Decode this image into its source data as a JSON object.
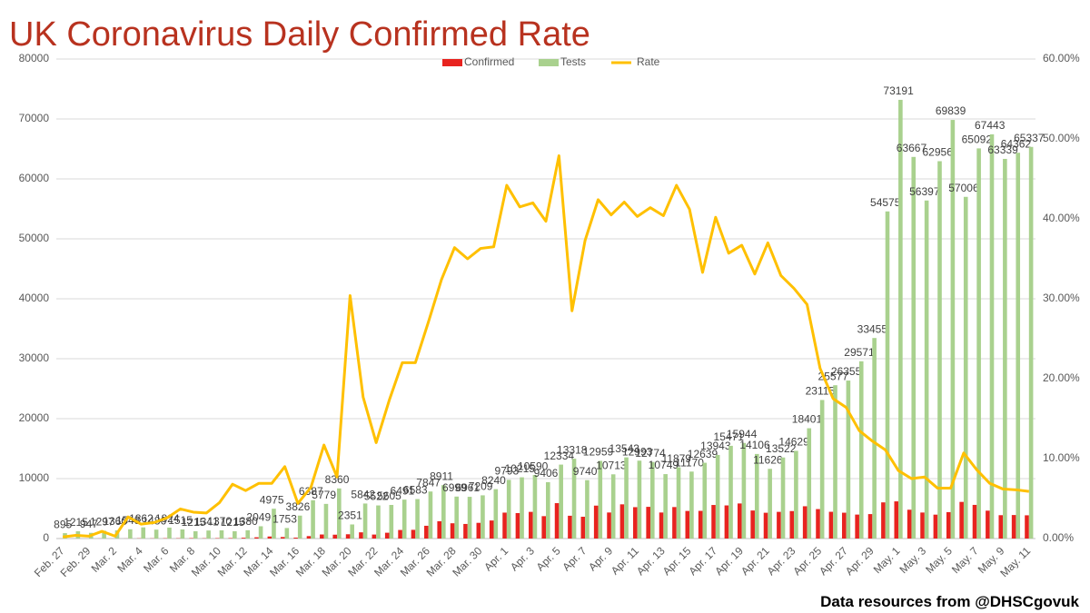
{
  "chart_data": {
    "type": "bar",
    "title": "UK Coronavirus Daily Confirmed Rate",
    "footnote": "Data resources from @DHSCgovuk",
    "categories": [
      "Feb. 27",
      null,
      "Feb. 29",
      null,
      "Mar. 2",
      null,
      "Mar. 4",
      null,
      "Mar. 6",
      null,
      "Mar. 8",
      null,
      "Mar. 10",
      null,
      "Mar. 12",
      null,
      "Mar. 14",
      null,
      "Mar. 16",
      null,
      "Mar. 18",
      null,
      "Mar. 20",
      null,
      "Mar. 22",
      null,
      "Mar. 24",
      null,
      "Mar. 26",
      null,
      "Mar. 28",
      null,
      "Mar. 30",
      null,
      "Apr. 1",
      null,
      "Apr. 3",
      null,
      "Apr. 5",
      null,
      "Apr. 7",
      null,
      "Apr. 9",
      null,
      "Apr. 11",
      null,
      "Apr. 13",
      null,
      "Apr. 15",
      null,
      "Apr. 17",
      null,
      "Apr. 19",
      null,
      "Apr. 21",
      null,
      "Apr. 23",
      null,
      "Apr. 25",
      null,
      "Apr. 27",
      null,
      "Apr. 29",
      null,
      "May. 1",
      null,
      "May. 3",
      null,
      "May. 5",
      null,
      "May. 7",
      null,
      "May. 9",
      null,
      "May. 11"
    ],
    "series": [
      {
        "name": "Confirmed",
        "color": "#e8231f",
        "values": [
          2,
          5,
          3,
          12,
          4,
          11,
          34,
          29,
          48,
          45,
          69,
          43,
          62,
          77,
          130,
          208,
          342,
          251,
          152,
          407,
          676,
          643,
          714,
          1035,
          665,
          967,
          1427,
          1452,
          2129,
          2885,
          2546,
          2433,
          2619,
          3009,
          4324,
          4244,
          4450,
          3735,
          5903,
          3802,
          3634,
          5491,
          4344,
          5706,
          5234,
          5288,
          4342,
          5252,
          4603,
          4617,
          5599,
          5525,
          5850,
          4676,
          4301,
          4451,
          4583,
          5386,
          4913,
          4463,
          4309,
          3996,
          4076,
          6032,
          6201,
          4806,
          4339,
          3985,
          4406,
          6111,
          5614,
          4649,
          3896,
          3923,
          3877
        ]
      },
      {
        "name": "Tests",
        "color": "#a9d18e",
        "values": [
          895,
          1215,
          947,
          1297,
          1360,
          1548,
          1862,
          1486,
          1824,
          1515,
          1215,
          1341,
          1370,
          1215,
          1380,
          2049,
          4975,
          1753,
          3826,
          6387,
          5779,
          8360,
          2351,
          5842,
          5522,
          5605,
          6491,
          6583,
          7847,
          8911,
          6999,
          6961,
          7209,
          8240,
          9793,
          10215,
          10590,
          9406,
          12334,
          13318,
          9740,
          12959,
          10713,
          13543,
          12993,
          12774,
          10749,
          11879,
          11170,
          12639,
          13943,
          15471,
          15944,
          14106,
          11626,
          13522,
          14629,
          18401,
          23115,
          25577,
          26355,
          29571,
          33455,
          54575,
          73191,
          63667,
          56397,
          62956,
          69839,
          57006,
          65092,
          67443,
          63339,
          64362,
          65337
        ]
      },
      {
        "name": "Rate",
        "color": "#ffc000",
        "type": "line",
        "axis": "y2",
        "values": [
          0.2,
          0.4,
          0.3,
          0.9,
          0.3,
          2.7,
          1.8,
          2.0,
          2.6,
          3.7,
          3.3,
          3.2,
          4.5,
          6.8,
          6.0,
          6.9,
          6.9,
          9.0,
          4.4,
          6.4,
          11.7,
          7.7,
          30.4,
          17.7,
          12.0,
          17.3,
          22.0,
          22.0,
          27.1,
          32.4,
          36.4,
          35.0,
          36.3,
          36.5,
          44.2,
          41.5,
          42.0,
          39.7,
          47.9,
          28.5,
          37.3,
          42.4,
          40.5,
          42.1,
          40.3,
          41.4,
          40.4,
          44.2,
          41.2,
          33.3,
          40.2,
          35.7,
          36.7,
          33.1,
          37.0,
          32.9,
          31.3,
          29.3,
          21.3,
          17.5,
          16.4,
          13.5,
          12.2,
          11.1,
          8.5,
          7.5,
          7.7,
          6.3,
          6.3,
          10.7,
          8.6,
          6.9,
          6.2,
          6.1,
          5.9
        ]
      }
    ],
    "ylim": [
      0,
      80000
    ],
    "yticks": [
      0,
      10000,
      20000,
      30000,
      40000,
      50000,
      60000,
      70000,
      80000
    ],
    "y2lim": [
      0,
      60
    ],
    "y2ticks": [
      {
        "value": 0,
        "label": "0.00%"
      },
      {
        "value": 10,
        "label": "10.00%"
      },
      {
        "value": 20,
        "label": "20.00%"
      },
      {
        "value": 30,
        "label": "30.00%"
      },
      {
        "value": 40,
        "label": "40.00%"
      },
      {
        "value": 50,
        "label": "50.00%"
      },
      {
        "value": 60,
        "label": "60.00%"
      }
    ],
    "grid": true,
    "legend": "top"
  }
}
